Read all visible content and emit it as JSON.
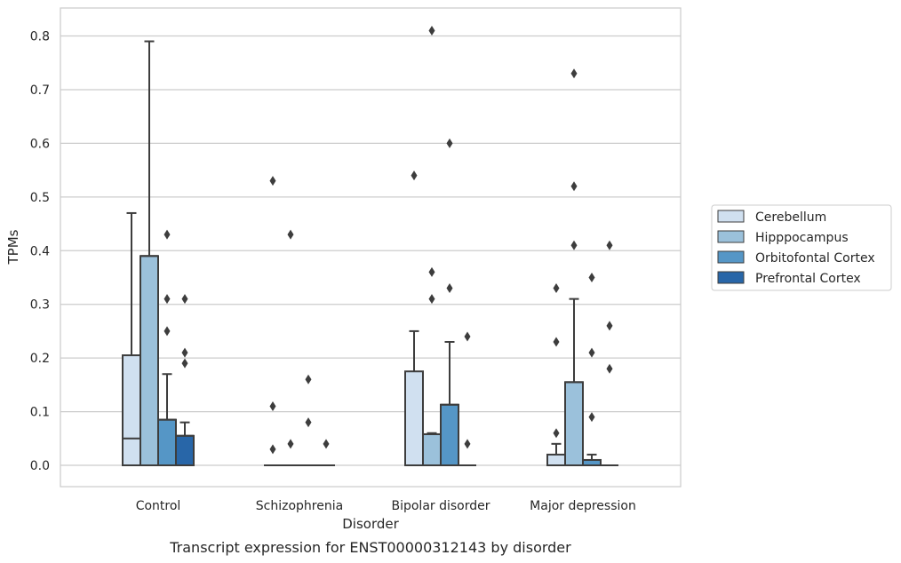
{
  "chart_data": {
    "type": "box",
    "caption": "Transcript expression for ENST00000312143 by disorder",
    "xlabel": "Disorder",
    "ylabel": "TPMs",
    "ylim": [
      -0.04,
      0.853
    ],
    "yticks": [
      0.0,
      0.1,
      0.2,
      0.3,
      0.4,
      0.5,
      0.6,
      0.7,
      0.8
    ],
    "ytick_labels": [
      "0.0",
      "0.1",
      "0.2",
      "0.3",
      "0.4",
      "0.5",
      "0.6",
      "0.7",
      "0.8"
    ],
    "grid": true,
    "legend_position": "right",
    "categories": [
      "Control",
      "Schizophrenia",
      "Bipolar disorder",
      "Major depression"
    ],
    "series": [
      {
        "name": "Cerebellum",
        "color": "#d0e0f0",
        "boxes": [
          {
            "q1": 0.0,
            "median": 0.05,
            "q3": 0.205,
            "whisker_low": 0.0,
            "whisker_high": 0.47,
            "outliers": []
          },
          {
            "q1": 0.0,
            "median": 0.0,
            "q3": 0.0,
            "whisker_low": 0.0,
            "whisker_high": 0.0,
            "outliers": [
              0.53,
              0.11,
              0.03
            ]
          },
          {
            "q1": 0.0,
            "median": 0.0,
            "q3": 0.175,
            "whisker_low": 0.0,
            "whisker_high": 0.25,
            "outliers": [
              0.54
            ]
          },
          {
            "q1": 0.0,
            "median": 0.0,
            "q3": 0.02,
            "whisker_low": 0.0,
            "whisker_high": 0.04,
            "outliers": [
              0.33,
              0.23,
              0.06
            ]
          }
        ]
      },
      {
        "name": "Hipppocampus",
        "color": "#9bc1db",
        "boxes": [
          {
            "q1": 0.0,
            "median": 0.39,
            "q3": 0.39,
            "whisker_low": 0.0,
            "whisker_high": 0.79,
            "outliers": []
          },
          {
            "q1": 0.0,
            "median": 0.0,
            "q3": 0.0,
            "whisker_low": 0.0,
            "whisker_high": 0.0,
            "outliers": [
              0.43,
              0.04
            ]
          },
          {
            "q1": 0.0,
            "median": 0.058,
            "q3": 0.058,
            "whisker_low": 0.0,
            "whisker_high": 0.06,
            "outliers": [
              0.81,
              0.36,
              0.31
            ]
          },
          {
            "q1": 0.0,
            "median": 0.155,
            "q3": 0.155,
            "whisker_low": 0.0,
            "whisker_high": 0.31,
            "outliers": [
              0.73,
              0.52,
              0.41
            ]
          }
        ]
      },
      {
        "name": "Orbitofontal Cortex",
        "color": "#5596c6",
        "boxes": [
          {
            "q1": 0.0,
            "median": 0.085,
            "q3": 0.085,
            "whisker_low": 0.0,
            "whisker_high": 0.17,
            "outliers": [
              0.43,
              0.31,
              0.25
            ]
          },
          {
            "q1": 0.0,
            "median": 0.0,
            "q3": 0.0,
            "whisker_low": 0.0,
            "whisker_high": 0.0,
            "outliers": [
              0.16,
              0.08
            ]
          },
          {
            "q1": 0.0,
            "median": 0.113,
            "q3": 0.113,
            "whisker_low": 0.0,
            "whisker_high": 0.23,
            "outliers": [
              0.6,
              0.33
            ]
          },
          {
            "q1": 0.0,
            "median": 0.01,
            "q3": 0.01,
            "whisker_low": 0.0,
            "whisker_high": 0.02,
            "outliers": [
              0.35,
              0.21,
              0.09
            ]
          }
        ]
      },
      {
        "name": "Prefrontal Cortex",
        "color": "#2866a8",
        "boxes": [
          {
            "q1": 0.0,
            "median": 0.055,
            "q3": 0.055,
            "whisker_low": 0.0,
            "whisker_high": 0.08,
            "outliers": [
              0.31,
              0.21,
              0.19
            ]
          },
          {
            "q1": 0.0,
            "median": 0.0,
            "q3": 0.0,
            "whisker_low": 0.0,
            "whisker_high": 0.0,
            "outliers": [
              0.04
            ]
          },
          {
            "q1": 0.0,
            "median": 0.0,
            "q3": 0.0,
            "whisker_low": 0.0,
            "whisker_high": 0.0,
            "outliers": [
              0.24,
              0.04
            ]
          },
          {
            "q1": 0.0,
            "median": 0.0,
            "q3": 0.0,
            "whisker_low": 0.0,
            "whisker_high": 0.0,
            "outliers": [
              0.41,
              0.26,
              0.18
            ]
          }
        ]
      }
    ]
  }
}
